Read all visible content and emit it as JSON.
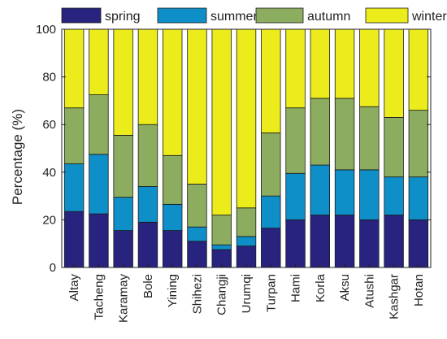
{
  "chart_data": {
    "type": "bar",
    "stacked": true,
    "categories": [
      "Altay",
      "Tacheng",
      "Karamay",
      "Bole",
      "Yining",
      "Shihezi",
      "Changji",
      "Urumqi",
      "Turpan",
      "Hami",
      "Korla",
      "Aksu",
      "Atushi",
      "Kashgar",
      "Hotan"
    ],
    "series": [
      {
        "name": "spring",
        "color": "#28237e",
        "values": [
          23.5,
          22.5,
          15.5,
          19,
          15.5,
          11,
          7.5,
          9,
          16.5,
          20,
          22,
          22,
          20,
          22,
          20
        ]
      },
      {
        "name": "summer",
        "color": "#0f8fc7",
        "values": [
          20,
          25,
          14,
          15,
          11,
          6,
          2,
          4,
          13.5,
          19.5,
          21,
          19,
          21,
          16,
          18
        ]
      },
      {
        "name": "autumn",
        "color": "#8cac5f",
        "values": [
          23.5,
          25,
          26,
          26,
          20.5,
          18,
          12.5,
          12,
          26.5,
          27.5,
          28,
          30,
          26.5,
          25,
          28
        ]
      },
      {
        "name": "winter",
        "color": "#ecec1c",
        "values": [
          33,
          27.5,
          44.5,
          40,
          53,
          65,
          78,
          75,
          43.5,
          33,
          29,
          29,
          32.5,
          37,
          34
        ]
      }
    ],
    "ylabel": "Percentage (%)",
    "ylim": [
      0,
      100
    ],
    "yticks": [
      0,
      20,
      40,
      60,
      80,
      100
    ],
    "grid": false,
    "legend": "top"
  }
}
